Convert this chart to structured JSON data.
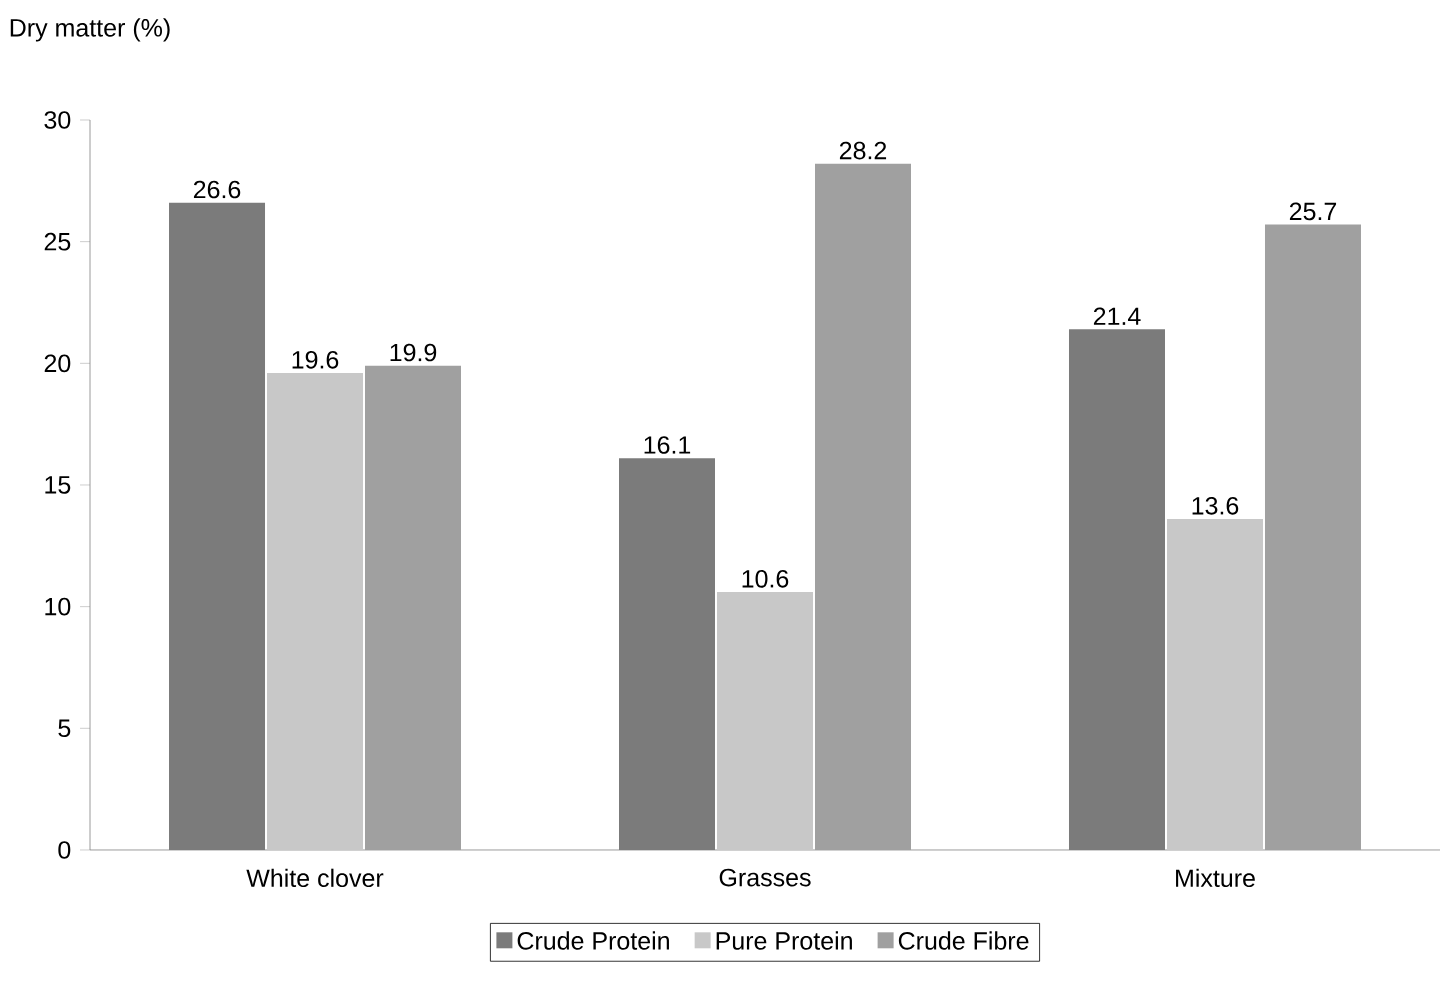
{
  "chart_data": {
    "type": "bar",
    "ylabel": "Dry matter (%)",
    "categories": [
      "White clover",
      "Grasses",
      "Mixture"
    ],
    "series": [
      {
        "name": "Crude Protein",
        "color": "#7b7b7b",
        "values": [
          26.6,
          16.1,
          21.4
        ]
      },
      {
        "name": "Pure Protein",
        "color": "#c8c8c8",
        "values": [
          19.6,
          10.6,
          13.6
        ]
      },
      {
        "name": "Crude Fibre",
        "color": "#a0a0a0",
        "values": [
          19.9,
          28.2,
          25.7
        ]
      }
    ],
    "ylim": [
      0,
      30
    ],
    "yticks": [
      0,
      5,
      10,
      15,
      20,
      25,
      30
    ],
    "data_labels": true,
    "legend": "bottom"
  }
}
